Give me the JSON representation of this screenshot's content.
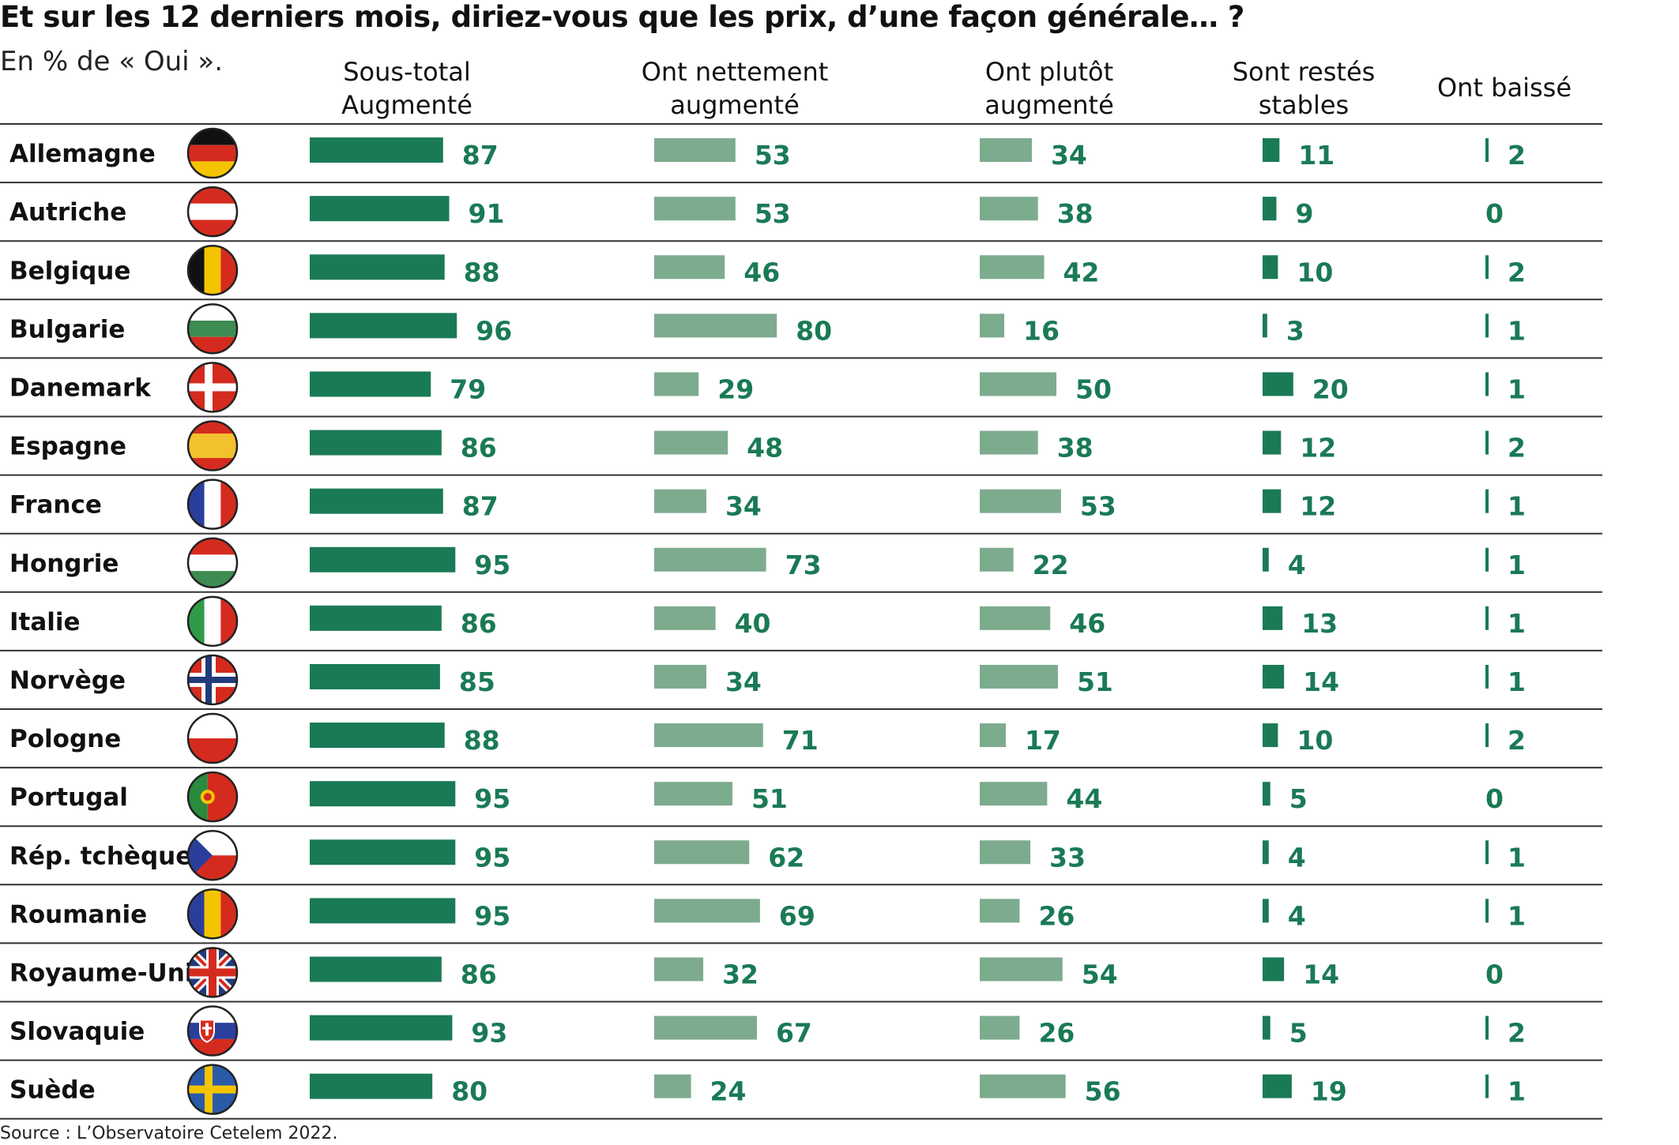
{
  "title": "Et sur les 12 derniers mois, diriez-vous que les prix, d’une façon générale… ?",
  "subtitle": "En % de « Oui ».",
  "columns": [
    {
      "line1": "Sous-total",
      "line2": "Augmenté"
    },
    {
      "line1": "Ont nettement",
      "line2": "augmenté"
    },
    {
      "line1": "Ont plutôt",
      "line2": "augmenté"
    },
    {
      "line1": "Sont restés",
      "line2": "stables"
    },
    {
      "line1": "Ont baissé",
      "line2": ""
    }
  ],
  "colors": {
    "dark_green": "#1a7a55",
    "light_green": "#7dab8e",
    "rule": "#333333",
    "value_text": "#1a7a55"
  },
  "chart_data": {
    "type": "table",
    "title": "Et sur les 12 derniers mois, diriez-vous que les prix, d’une façon générale… ?",
    "unit": "En % de « Oui ».",
    "series": [
      {
        "name": "Sous-total Augmenté",
        "values": [
          87,
          91,
          88,
          96,
          79,
          86,
          87,
          95,
          86,
          85,
          88,
          95,
          95,
          95,
          86,
          93,
          80
        ]
      },
      {
        "name": "Ont nettement augmenté",
        "values": [
          53,
          53,
          46,
          80,
          29,
          48,
          34,
          73,
          40,
          34,
          71,
          51,
          62,
          69,
          32,
          67,
          24
        ]
      },
      {
        "name": "Ont plutôt augmenté",
        "values": [
          34,
          38,
          42,
          16,
          50,
          38,
          53,
          22,
          46,
          51,
          17,
          44,
          33,
          26,
          54,
          26,
          56
        ]
      },
      {
        "name": "Sont restés stables",
        "values": [
          11,
          9,
          10,
          3,
          20,
          12,
          12,
          4,
          13,
          14,
          10,
          5,
          4,
          4,
          14,
          5,
          19
        ]
      },
      {
        "name": "Ont baissé",
        "values": [
          2,
          0,
          2,
          1,
          1,
          2,
          1,
          1,
          1,
          1,
          2,
          0,
          1,
          1,
          0,
          2,
          1
        ]
      }
    ],
    "rows": [
      {
        "country": "Allemagne",
        "flag": "germany-flag"
      },
      {
        "country": "Autriche",
        "flag": "austria-flag"
      },
      {
        "country": "Belgique",
        "flag": "belgium-flag"
      },
      {
        "country": "Bulgarie",
        "flag": "bulgaria-flag"
      },
      {
        "country": "Danemark",
        "flag": "denmark-flag"
      },
      {
        "country": "Espagne",
        "flag": "spain-flag"
      },
      {
        "country": "France",
        "flag": "france-flag"
      },
      {
        "country": "Hongrie",
        "flag": "hungary-flag"
      },
      {
        "country": "Italie",
        "flag": "italy-flag"
      },
      {
        "country": "Norvège",
        "flag": "norway-flag"
      },
      {
        "country": "Pologne",
        "flag": "poland-flag"
      },
      {
        "country": "Portugal",
        "flag": "portugal-flag"
      },
      {
        "country": "Rép. tchèque",
        "flag": "czech-flag"
      },
      {
        "country": "Roumanie",
        "flag": "romania-flag"
      },
      {
        "country": "Royaume-Uni",
        "flag": "uk-flag"
      },
      {
        "country": "Slovaquie",
        "flag": "slovakia-flag"
      },
      {
        "country": "Suède",
        "flag": "sweden-flag"
      }
    ]
  },
  "source": "Source : L’Observatoire Cetelem 2022."
}
